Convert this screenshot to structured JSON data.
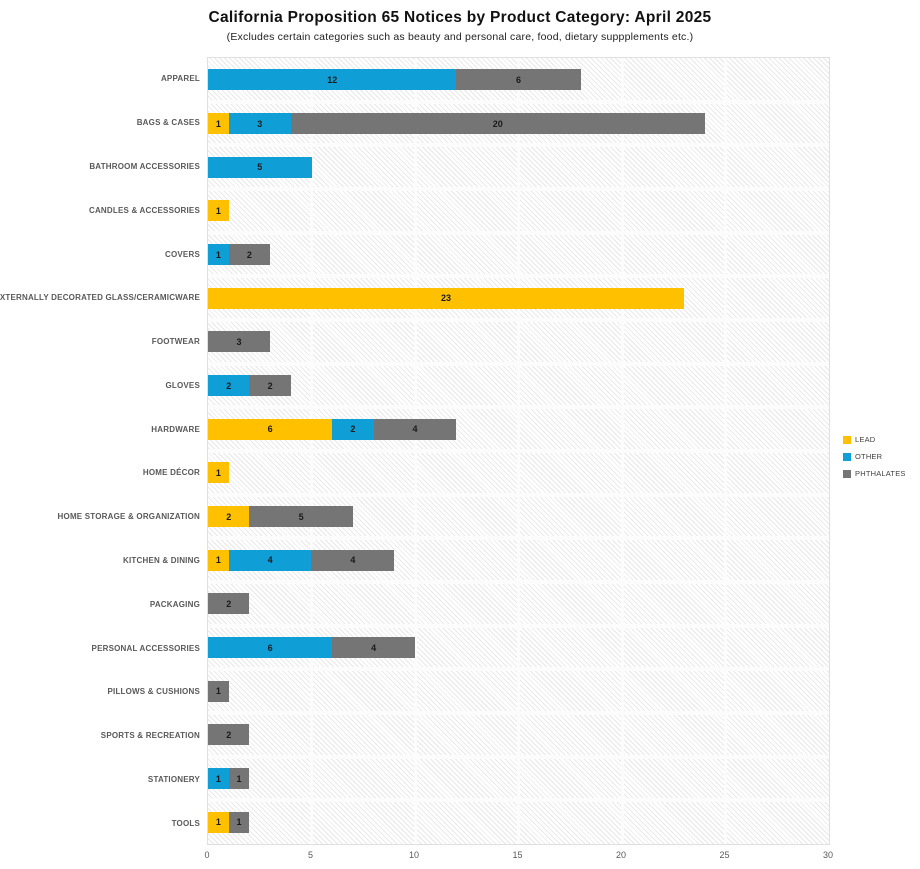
{
  "header": {
    "title": "California Proposition 65 Notices by Product Category: April 2025",
    "subtitle": "(Excludes certain categories such as beauty and personal care, food, dietary suppplements etc.)"
  },
  "chart_data": {
    "type": "bar",
    "orientation": "horizontal",
    "stacked": true,
    "title": "California Proposition 65 Notices by Product Category: April 2025",
    "xlabel": "",
    "ylabel": "",
    "xlim": [
      0,
      30
    ],
    "xticks": [
      "0",
      "5",
      "10",
      "15",
      "20",
      "25",
      "30"
    ],
    "grid": true,
    "legend_position": "right",
    "categories": [
      "APPAREL",
      "BAGS & CASES",
      "BATHROOM ACCESSORIES",
      "CANDLES & ACCESSORIES",
      "COVERS",
      "EXTERNALLY DECORATED GLASS/CERAMICWARE",
      "FOOTWEAR",
      "GLOVES",
      "HARDWARE",
      "HOME DÉCOR",
      "HOME STORAGE & ORGANIZATION",
      "KITCHEN & DINING",
      "PACKAGING",
      "PERSONAL ACCESSORIES",
      "PILLOWS & CUSHIONS",
      "SPORTS & RECREATION",
      "STATIONERY",
      "TOOLS"
    ],
    "series": [
      {
        "name": "LEAD",
        "color": "#FFC000",
        "values": [
          0,
          1,
          0,
          1,
          0,
          23,
          0,
          0,
          6,
          1,
          2,
          1,
          0,
          0,
          0,
          0,
          0,
          1
        ]
      },
      {
        "name": "OTHER",
        "color": "#0F9ED5",
        "values": [
          12,
          3,
          5,
          0,
          1,
          0,
          0,
          2,
          2,
          0,
          0,
          4,
          0,
          6,
          0,
          0,
          1,
          0
        ]
      },
      {
        "name": "PHTHALATES",
        "color": "#757575",
        "values": [
          6,
          20,
          0,
          0,
          2,
          0,
          3,
          2,
          4,
          0,
          5,
          4,
          2,
          4,
          1,
          2,
          1,
          1
        ]
      }
    ]
  }
}
